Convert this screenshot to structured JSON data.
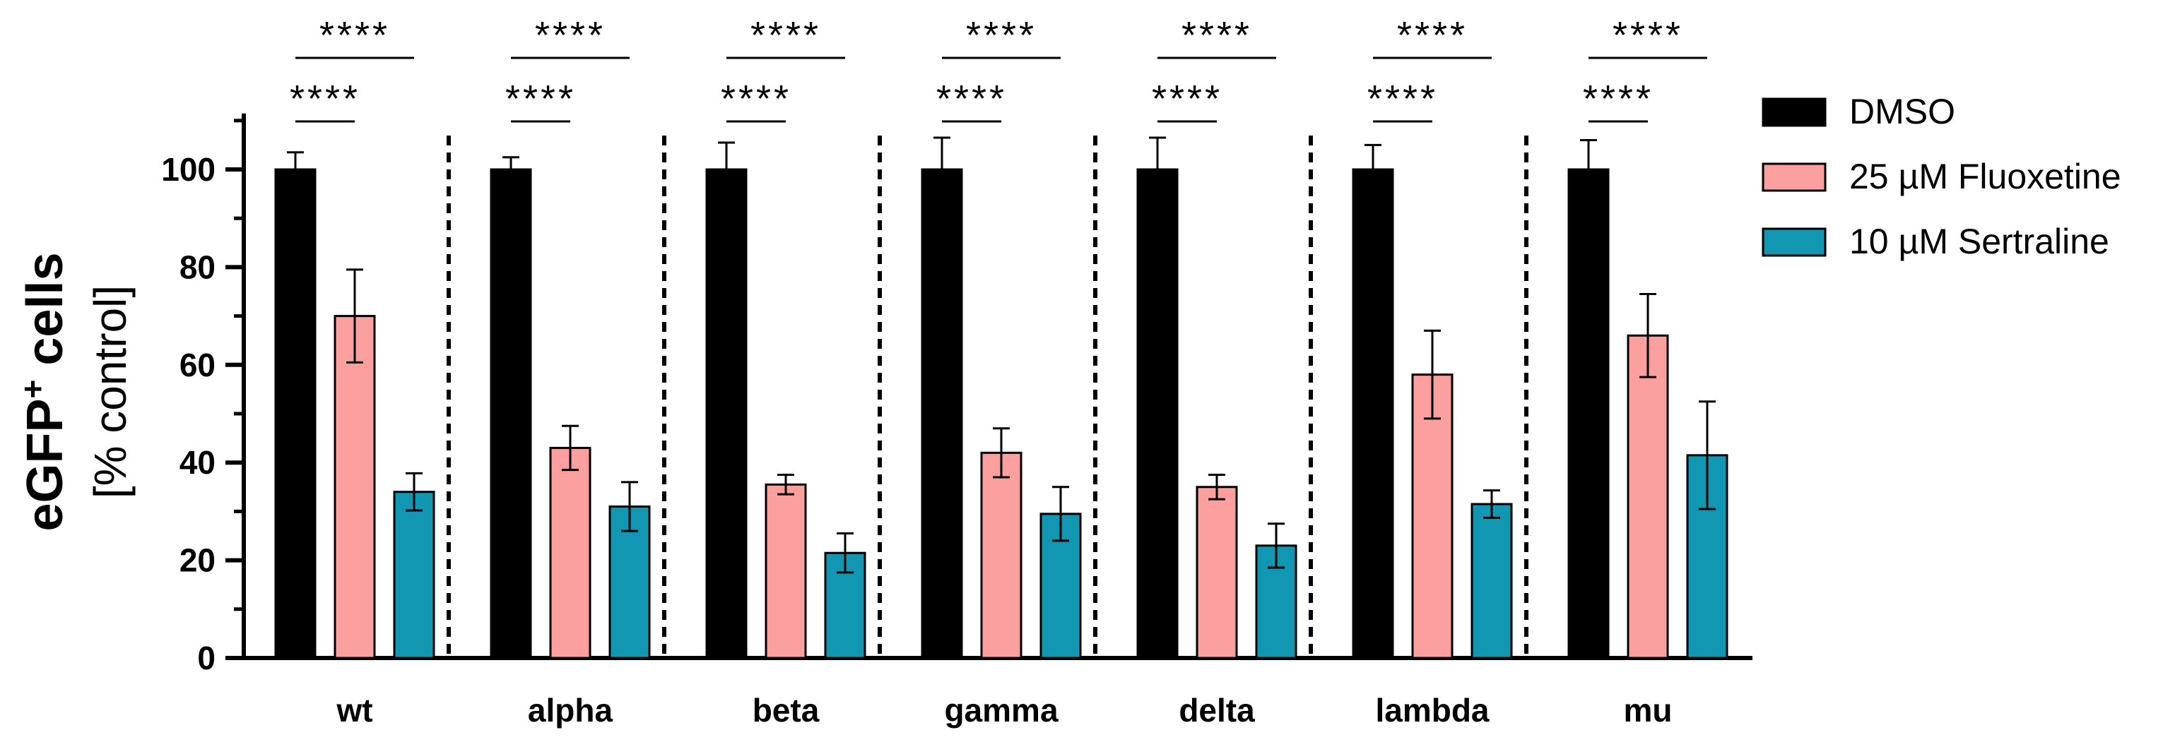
{
  "chart_data": {
    "type": "bar",
    "title": "",
    "xlabel": "",
    "ylabel_main": "eGFP",
    "ylabel_superscript": "+",
    "ylabel_suffix": " cells",
    "ylabel_sub": "[% control]",
    "ylim": [
      0,
      110
    ],
    "yticks": [
      0,
      20,
      40,
      60,
      80,
      100
    ],
    "grid": false,
    "legend_position": "right",
    "categories": [
      "wt",
      "alpha",
      "beta",
      "gamma",
      "delta",
      "lambda",
      "mu"
    ],
    "series": [
      {
        "name": "DMSO",
        "color": "#000000",
        "values": [
          100,
          100,
          100,
          100,
          100,
          100,
          100
        ],
        "errors": [
          3.5,
          2.5,
          5.5,
          6.5,
          6.5,
          5,
          6
        ]
      },
      {
        "name": "25 µM Fluoxetine",
        "color": "#FBA09E",
        "values": [
          70,
          43,
          35.5,
          42,
          35,
          58,
          66
        ],
        "errors": [
          9.5,
          4.5,
          2,
          5,
          2.5,
          9,
          8.5
        ]
      },
      {
        "name": "10 µM Sertraline",
        "color": "#1297B3",
        "values": [
          34,
          31,
          21.5,
          29.5,
          23,
          31.5,
          41.5
        ],
        "errors": [
          3.8,
          5,
          4,
          5.5,
          4.5,
          2.8,
          11
        ]
      }
    ],
    "significance": [
      {
        "category": "wt",
        "comparisons": [
          {
            "pair": [
              "DMSO",
              "25 µM Fluoxetine"
            ],
            "label": "****"
          },
          {
            "pair": [
              "DMSO",
              "10 µM Sertraline"
            ],
            "label": "****"
          }
        ]
      },
      {
        "category": "alpha",
        "comparisons": [
          {
            "pair": [
              "DMSO",
              "25 µM Fluoxetine"
            ],
            "label": "****"
          },
          {
            "pair": [
              "DMSO",
              "10 µM Sertraline"
            ],
            "label": "****"
          }
        ]
      },
      {
        "category": "beta",
        "comparisons": [
          {
            "pair": [
              "DMSO",
              "25 µM Fluoxetine"
            ],
            "label": "****"
          },
          {
            "pair": [
              "DMSO",
              "10 µM Sertraline"
            ],
            "label": "****"
          }
        ]
      },
      {
        "category": "gamma",
        "comparisons": [
          {
            "pair": [
              "DMSO",
              "25 µM Fluoxetine"
            ],
            "label": "****"
          },
          {
            "pair": [
              "DMSO",
              "10 µM Sertraline"
            ],
            "label": "****"
          }
        ]
      },
      {
        "category": "delta",
        "comparisons": [
          {
            "pair": [
              "DMSO",
              "25 µM Fluoxetine"
            ],
            "label": "****"
          },
          {
            "pair": [
              "DMSO",
              "10 µM Sertraline"
            ],
            "label": "****"
          }
        ]
      },
      {
        "category": "lambda",
        "comparisons": [
          {
            "pair": [
              "DMSO",
              "25 µM Fluoxetine"
            ],
            "label": "****"
          },
          {
            "pair": [
              "DMSO",
              "10 µM Sertraline"
            ],
            "label": "****"
          }
        ]
      },
      {
        "category": "mu",
        "comparisons": [
          {
            "pair": [
              "DMSO",
              "25 µM Fluoxetine"
            ],
            "label": "****"
          },
          {
            "pair": [
              "DMSO",
              "10 µM Sertraline"
            ],
            "label": "****"
          }
        ]
      }
    ]
  }
}
